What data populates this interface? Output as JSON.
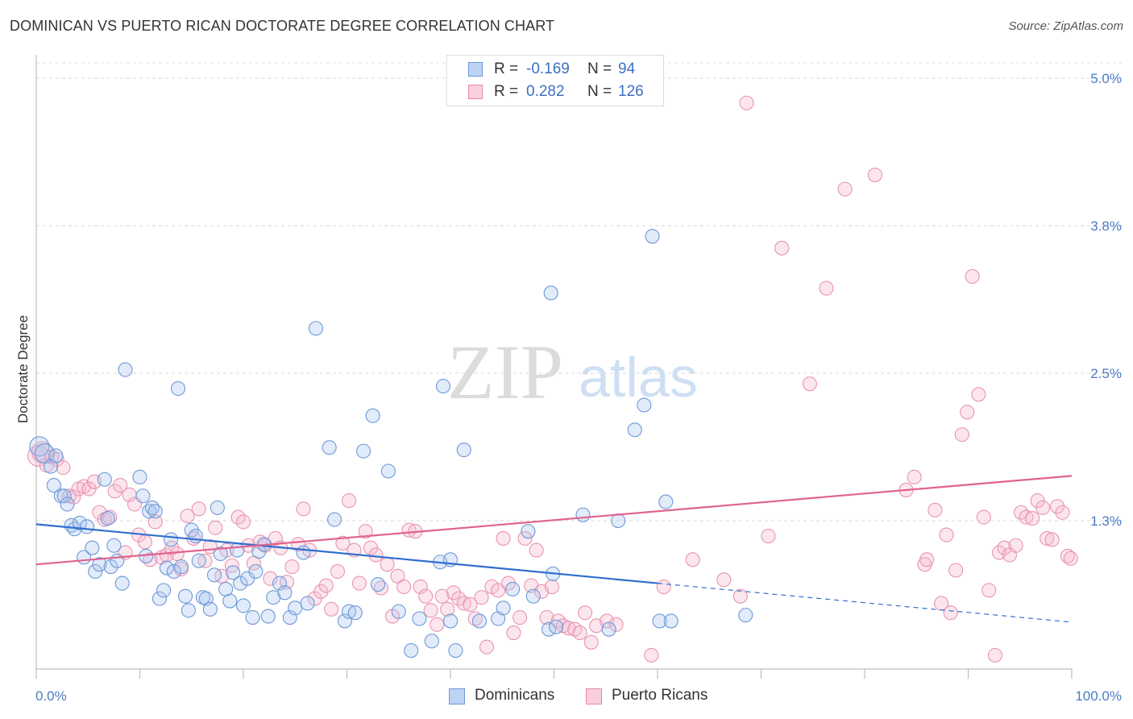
{
  "title": "DOMINICAN VS PUERTO RICAN DOCTORATE DEGREE CORRELATION CHART",
  "source": "Source: ZipAtlas.com",
  "watermark": {
    "zip": "ZIP",
    "atlas": "atlas"
  },
  "legend": {
    "rows": [
      {
        "r_label": "R =",
        "r_value": "-0.169",
        "n_label": "N =",
        "n_value": "94",
        "color": "#a9c6f0",
        "border": "#6e99d6"
      },
      {
        "r_label": "R =",
        "r_value": "0.282",
        "n_label": "N =",
        "n_value": "126",
        "color": "#f6bed0",
        "border": "#e68aa8"
      }
    ]
  },
  "bottom_legend": {
    "dominicans": "Dominicans",
    "puerto_ricans": "Puerto Ricans"
  },
  "chart_data": {
    "type": "scatter",
    "title": "DOMINICAN VS PUERTO RICAN DOCTORATE DEGREE CORRELATION CHART",
    "xlabel": "",
    "ylabel": "Doctorate Degree",
    "xlim": [
      0,
      100
    ],
    "ylim": [
      0.0,
      5.13
    ],
    "y_ticks": [
      {
        "value": 1.25,
        "label": "1.3%"
      },
      {
        "value": 2.5,
        "label": "2.5%"
      },
      {
        "value": 3.75,
        "label": "3.8%"
      },
      {
        "value": 5.0,
        "label": "5.0%"
      }
    ],
    "x_tick_labels": {
      "min": "0.0%",
      "max": "100.0%"
    },
    "grid": true,
    "legend_position": "top-center",
    "colors": {
      "dominicans": "#6e99d6",
      "dominicans_line": "#2f6fcf",
      "puerto_ricans": "#e68aa8",
      "puerto_ricans_line": "#e0638e"
    },
    "series": [
      {
        "name": "Dominicans",
        "trend": {
          "x0": 0,
          "y0": 1.22,
          "x1": 60,
          "y1": 0.72,
          "dash_to_x": 100,
          "dash_to_y": 0.39
        },
        "points": [
          [
            0.3,
            1.88
          ],
          [
            0.8,
            1.82
          ],
          [
            1.4,
            1.71
          ],
          [
            1.9,
            1.8
          ],
          [
            1.7,
            1.55
          ],
          [
            2.4,
            1.46
          ],
          [
            2.7,
            1.46
          ],
          [
            3.0,
            1.39
          ],
          [
            3.4,
            1.21
          ],
          [
            3.7,
            1.18
          ],
          [
            4.2,
            1.23
          ],
          [
            4.6,
            0.94
          ],
          [
            4.9,
            1.2
          ],
          [
            5.4,
            1.02
          ],
          [
            5.7,
            0.82
          ],
          [
            6.1,
            0.88
          ],
          [
            6.6,
            1.6
          ],
          [
            6.9,
            1.27
          ],
          [
            7.2,
            0.86
          ],
          [
            7.5,
            1.04
          ],
          [
            7.8,
            0.91
          ],
          [
            8.3,
            0.72
          ],
          [
            8.6,
            2.53
          ],
          [
            10.0,
            1.62
          ],
          [
            10.3,
            1.46
          ],
          [
            10.6,
            0.95
          ],
          [
            10.9,
            1.33
          ],
          [
            11.2,
            1.36
          ],
          [
            11.5,
            1.33
          ],
          [
            11.9,
            0.59
          ],
          [
            12.3,
            0.66
          ],
          [
            12.6,
            0.85
          ],
          [
            13.0,
            1.09
          ],
          [
            13.3,
            0.82
          ],
          [
            13.7,
            2.37
          ],
          [
            14.0,
            0.86
          ],
          [
            14.4,
            0.61
          ],
          [
            14.7,
            0.49
          ],
          [
            15.0,
            1.17
          ],
          [
            15.4,
            1.12
          ],
          [
            15.7,
            0.91
          ],
          [
            16.1,
            0.6
          ],
          [
            16.4,
            0.59
          ],
          [
            16.8,
            0.5
          ],
          [
            17.2,
            0.79
          ],
          [
            17.5,
            1.36
          ],
          [
            17.8,
            0.97
          ],
          [
            18.3,
            0.67
          ],
          [
            18.7,
            0.57
          ],
          [
            19.0,
            0.81
          ],
          [
            19.4,
            1.0
          ],
          [
            19.7,
            0.72
          ],
          [
            20.0,
            0.53
          ],
          [
            20.4,
            0.76
          ],
          [
            20.9,
            0.43
          ],
          [
            21.2,
            0.82
          ],
          [
            21.5,
            0.99
          ],
          [
            22.0,
            1.05
          ],
          [
            22.4,
            0.44
          ],
          [
            22.9,
            0.6
          ],
          [
            23.5,
            0.72
          ],
          [
            24.0,
            0.64
          ],
          [
            24.5,
            0.43
          ],
          [
            25.0,
            0.51
          ],
          [
            25.8,
            0.98
          ],
          [
            26.2,
            0.55
          ],
          [
            27.0,
            2.88
          ],
          [
            28.3,
            1.87
          ],
          [
            28.8,
            1.26
          ],
          [
            29.8,
            0.4
          ],
          [
            30.2,
            0.48
          ],
          [
            30.8,
            0.47
          ],
          [
            31.6,
            1.84
          ],
          [
            32.5,
            2.14
          ],
          [
            33.0,
            0.71
          ],
          [
            34.0,
            1.67
          ],
          [
            35.0,
            0.48
          ],
          [
            36.2,
            0.15
          ],
          [
            37.0,
            0.42
          ],
          [
            38.2,
            0.23
          ],
          [
            39.0,
            0.9
          ],
          [
            40.0,
            0.92
          ],
          [
            40.5,
            0.15
          ],
          [
            41.3,
            1.85
          ],
          [
            42.8,
            0.4
          ],
          [
            44.6,
            0.42
          ],
          [
            45.1,
            0.51
          ],
          [
            46.0,
            0.67
          ],
          [
            47.5,
            1.16
          ],
          [
            48.0,
            0.61
          ],
          [
            49.5,
            0.33
          ],
          [
            52.8,
            1.3
          ],
          [
            55.3,
            0.33
          ],
          [
            56.2,
            1.25
          ]
        ],
        "points_extra": [
          [
            50.2,
            0.35
          ],
          [
            49.9,
            0.8
          ],
          [
            40.0,
            0.4
          ],
          [
            57.8,
            2.02
          ],
          [
            60.2,
            0.4
          ],
          [
            39.3,
            2.39
          ],
          [
            49.7,
            3.18
          ],
          [
            58.7,
            2.23
          ],
          [
            59.5,
            3.66
          ],
          [
            68.5,
            0.45
          ],
          [
            60.8,
            1.41
          ],
          [
            61.3,
            0.4
          ]
        ]
      },
      {
        "name": "Puerto Ricans",
        "trend": {
          "x0": 0,
          "y0": 0.88,
          "x1": 100,
          "y1": 1.63
        },
        "points": [
          [
            0.2,
            1.8
          ],
          [
            0.6,
            1.83
          ],
          [
            1.0,
            1.72
          ],
          [
            1.5,
            1.79
          ],
          [
            2.0,
            1.77
          ],
          [
            2.6,
            1.7
          ],
          [
            3.2,
            1.46
          ],
          [
            3.6,
            1.45
          ],
          [
            4.1,
            1.52
          ],
          [
            4.6,
            1.54
          ],
          [
            5.1,
            1.52
          ],
          [
            5.6,
            1.58
          ],
          [
            6.1,
            1.32
          ],
          [
            6.6,
            1.26
          ],
          [
            7.1,
            1.28
          ],
          [
            7.6,
            1.5
          ],
          [
            8.1,
            1.55
          ],
          [
            8.6,
            0.98
          ],
          [
            9.0,
            1.47
          ],
          [
            9.5,
            1.39
          ],
          [
            9.9,
            1.13
          ],
          [
            10.5,
            1.07
          ],
          [
            11.0,
            0.92
          ],
          [
            11.5,
            1.24
          ],
          [
            12.1,
            0.94
          ],
          [
            12.6,
            0.96
          ],
          [
            13.1,
            1.02
          ],
          [
            13.6,
            0.97
          ],
          [
            14.0,
            0.84
          ],
          [
            14.6,
            1.29
          ],
          [
            15.2,
            1.1
          ],
          [
            15.7,
            1.35
          ],
          [
            16.3,
            0.91
          ],
          [
            16.8,
            1.03
          ],
          [
            17.3,
            1.19
          ],
          [
            17.9,
            0.78
          ],
          [
            18.4,
            1.0
          ],
          [
            18.9,
            0.87
          ],
          [
            19.5,
            1.28
          ],
          [
            20.0,
            1.24
          ],
          [
            20.5,
            1.04
          ],
          [
            21.0,
            0.89
          ],
          [
            21.6,
            1.07
          ],
          [
            22.1,
            1.04
          ],
          [
            22.6,
            0.76
          ],
          [
            23.1,
            1.1
          ],
          [
            23.6,
            1.02
          ],
          [
            24.2,
            0.73
          ],
          [
            24.7,
            0.86
          ],
          [
            25.3,
            1.05
          ],
          [
            25.8,
            1.35
          ],
          [
            26.4,
            1.0
          ],
          [
            26.9,
            0.59
          ],
          [
            27.5,
            0.65
          ],
          [
            28.0,
            0.7
          ],
          [
            28.5,
            0.5
          ],
          [
            29.1,
            0.82
          ],
          [
            29.6,
            1.06
          ],
          [
            30.2,
            1.42
          ],
          [
            30.7,
            1.0
          ],
          [
            31.2,
            0.72
          ],
          [
            31.8,
            1.16
          ],
          [
            32.3,
            1.02
          ],
          [
            32.8,
            0.96
          ],
          [
            33.3,
            0.68
          ],
          [
            33.9,
            0.88
          ],
          [
            34.4,
            0.44
          ],
          [
            34.9,
            0.78
          ],
          [
            35.5,
            0.69
          ],
          [
            36.0,
            1.17
          ],
          [
            36.6,
            1.16
          ],
          [
            37.1,
            0.69
          ],
          [
            37.6,
            0.61
          ],
          [
            38.1,
            0.49
          ],
          [
            38.7,
            0.37
          ],
          [
            39.2,
            0.61
          ],
          [
            39.7,
            0.5
          ],
          [
            40.3,
            0.64
          ],
          [
            40.8,
            0.59
          ],
          [
            41.3,
            0.55
          ],
          [
            41.9,
            0.54
          ],
          [
            42.4,
            0.42
          ],
          [
            43.0,
            0.6
          ],
          [
            43.5,
            0.18
          ],
          [
            44.0,
            0.69
          ],
          [
            44.6,
            0.66
          ],
          [
            45.1,
            1.1
          ],
          [
            45.6,
            0.72
          ],
          [
            46.1,
            0.3
          ],
          [
            46.7,
            0.43
          ],
          [
            47.2,
            1.1
          ],
          [
            47.8,
            0.7
          ],
          [
            48.3,
            1.0
          ]
        ],
        "points_extra": [
          [
            48.8,
            0.65
          ],
          [
            49.3,
            0.43
          ],
          [
            49.8,
            0.69
          ],
          [
            50.4,
            0.4
          ],
          [
            50.9,
            0.36
          ],
          [
            51.4,
            0.34
          ],
          [
            52.0,
            0.33
          ],
          [
            52.5,
            0.3
          ],
          [
            53.0,
            0.47
          ],
          [
            53.6,
            0.22
          ],
          [
            54.1,
            0.36
          ],
          [
            55.1,
            0.4
          ],
          [
            56.0,
            0.37
          ],
          [
            59.4,
            0.11
          ],
          [
            60.6,
            0.69
          ],
          [
            63.4,
            0.92
          ],
          [
            66.4,
            0.75
          ],
          [
            68.0,
            0.61
          ],
          [
            68.6,
            4.79
          ],
          [
            70.7,
            1.12
          ],
          [
            72.0,
            3.56
          ],
          [
            74.7,
            2.41
          ],
          [
            76.3,
            3.22
          ],
          [
            78.1,
            4.06
          ],
          [
            81.0,
            4.18
          ],
          [
            84.0,
            1.51
          ],
          [
            84.8,
            1.62
          ],
          [
            85.8,
            0.88
          ],
          [
            86.0,
            0.92
          ],
          [
            86.8,
            1.34
          ],
          [
            87.4,
            0.55
          ],
          [
            87.9,
            1.13
          ],
          [
            88.3,
            0.47
          ],
          [
            88.8,
            0.83
          ],
          [
            89.4,
            1.98
          ],
          [
            89.9,
            2.17
          ],
          [
            90.4,
            3.32
          ],
          [
            91.0,
            2.32
          ],
          [
            91.5,
            1.28
          ],
          [
            92.0,
            0.66
          ],
          [
            92.6,
            0.11
          ],
          [
            93.0,
            0.98
          ],
          [
            93.5,
            1.02
          ],
          [
            94.0,
            0.96
          ],
          [
            94.6,
            1.04
          ],
          [
            95.1,
            1.32
          ],
          [
            95.6,
            1.28
          ],
          [
            96.2,
            1.27
          ],
          [
            96.7,
            1.42
          ],
          [
            97.2,
            1.36
          ],
          [
            97.6,
            1.1
          ],
          [
            98.1,
            1.09
          ],
          [
            98.6,
            1.37
          ],
          [
            99.1,
            1.32
          ],
          [
            99.6,
            0.95
          ],
          [
            99.9,
            0.93
          ]
        ]
      }
    ]
  }
}
